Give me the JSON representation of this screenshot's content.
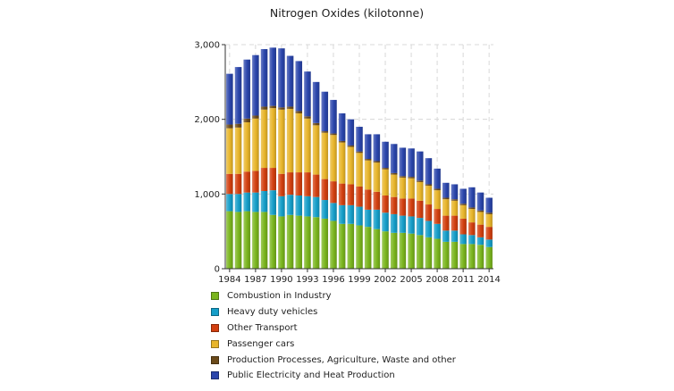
{
  "chart_data": {
    "type": "bar",
    "stacked": true,
    "title": "Nitrogen Oxides (kilotonne)",
    "xlabel": "",
    "ylabel": "",
    "ylim": [
      0,
      3000
    ],
    "yticks": [
      0,
      1000,
      2000,
      3000
    ],
    "ytick_labels": [
      "0",
      "1,000",
      "2,000",
      "3,000"
    ],
    "xtick_labels": [
      "1984",
      "1987",
      "1990",
      "1993",
      "1996",
      "1999",
      "2002",
      "2005",
      "2008",
      "2011",
      "2014"
    ],
    "grid": true,
    "legend_position": "bottom",
    "categories": [
      "1984",
      "1985",
      "1986",
      "1987",
      "1988",
      "1989",
      "1990",
      "1991",
      "1992",
      "1993",
      "1994",
      "1995",
      "1996",
      "1997",
      "1998",
      "1999",
      "2000",
      "2001",
      "2002",
      "2003",
      "2004",
      "2005",
      "2006",
      "2007",
      "2008",
      "2009",
      "2010",
      "2011",
      "2012",
      "2013",
      "2014"
    ],
    "series": [
      {
        "name": "Combustion in Industry",
        "color": "#7ab51d",
        "values": [
          770,
          760,
          770,
          760,
          760,
          720,
          700,
          720,
          710,
          700,
          690,
          670,
          640,
          600,
          600,
          580,
          560,
          530,
          500,
          480,
          480,
          470,
          450,
          420,
          400,
          360,
          360,
          330,
          330,
          320,
          290
        ]
      },
      {
        "name": "Heavy duty vehicles",
        "color": "#159ec9",
        "values": [
          230,
          240,
          250,
          260,
          280,
          330,
          270,
          270,
          270,
          270,
          270,
          250,
          240,
          250,
          250,
          250,
          230,
          260,
          250,
          250,
          230,
          230,
          230,
          220,
          200,
          150,
          150,
          130,
          120,
          100,
          100
        ]
      },
      {
        "name": "Other Transport",
        "color": "#d23f0f",
        "values": [
          270,
          270,
          280,
          290,
          310,
          300,
          300,
          300,
          310,
          320,
          300,
          280,
          290,
          290,
          280,
          270,
          270,
          240,
          230,
          230,
          230,
          240,
          230,
          220,
          200,
          200,
          200,
          210,
          170,
          170,
          170
        ]
      },
      {
        "name": "Passenger cars",
        "color": "#e8b52a",
        "values": [
          610,
          620,
          660,
          700,
          780,
          800,
          860,
          850,
          790,
          720,
          660,
          620,
          620,
          550,
          500,
          450,
          390,
          390,
          350,
          300,
          280,
          270,
          250,
          250,
          250,
          220,
          200,
          180,
          180,
          170,
          170
        ]
      },
      {
        "name": "Production Processes, Agriculture, Waste and other",
        "color": "#6b4a1a",
        "values": [
          50,
          50,
          50,
          40,
          40,
          30,
          30,
          30,
          30,
          30,
          30,
          20,
          20,
          20,
          20,
          20,
          20,
          20,
          20,
          20,
          20,
          20,
          20,
          20,
          20,
          20,
          20,
          20,
          20,
          20,
          20
        ]
      },
      {
        "name": "Public Electricity and Heat Production",
        "color": "#2a45ab",
        "values": [
          680,
          760,
          790,
          810,
          770,
          780,
          790,
          680,
          670,
          600,
          550,
          530,
          450,
          370,
          350,
          330,
          330,
          360,
          350,
          390,
          380,
          380,
          390,
          350,
          270,
          200,
          200,
          200,
          270,
          240,
          200
        ]
      }
    ]
  }
}
